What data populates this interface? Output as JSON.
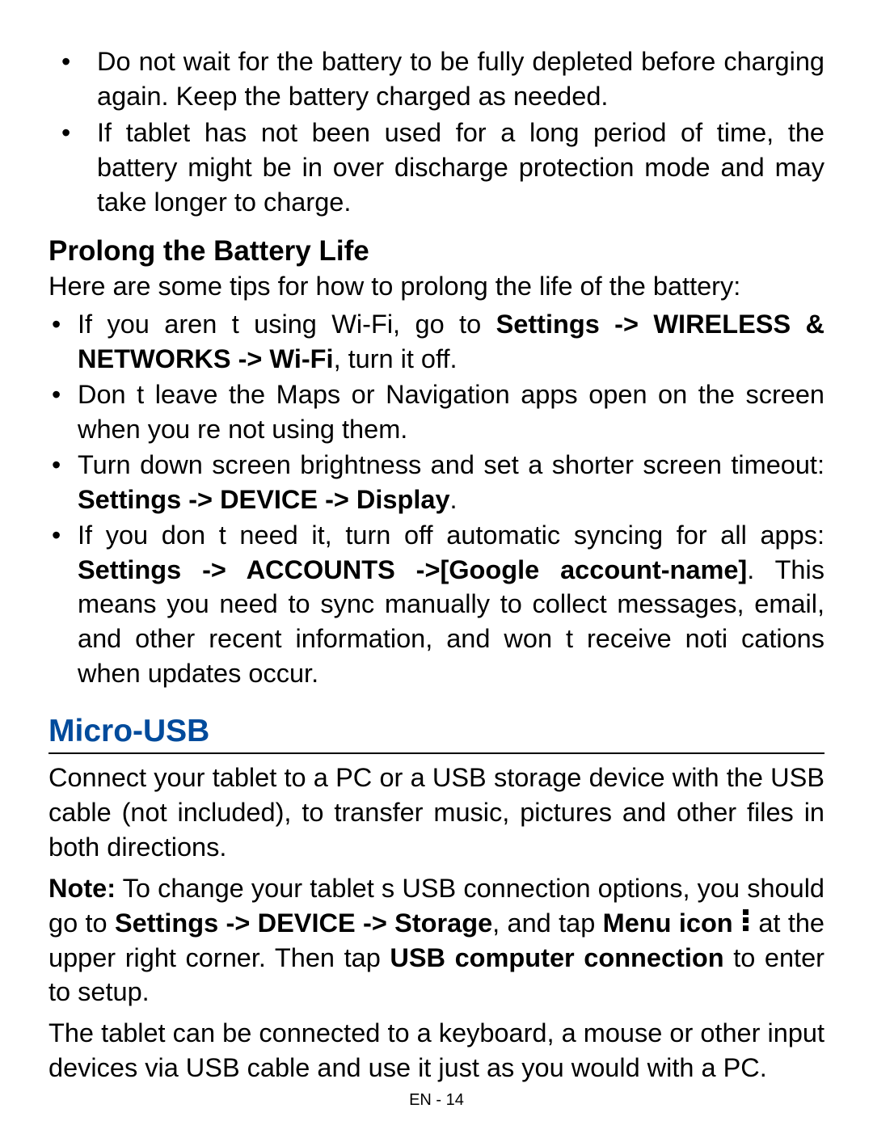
{
  "accent_color": "#004b9c",
  "top_bullets": [
    "Do not wait for the battery to be fully depleted before charging again. Keep the battery charged as needed.",
    "If tablet has not been used for a long period of time, the battery might be in over discharge protection mode and may take longer to charge."
  ],
  "prolong": {
    "heading": "Prolong the Battery Life",
    "intro": "Here are some tips for how to prolong the life of the battery:",
    "tips": [
      {
        "pre": "If you aren t using Wi-Fi, go to ",
        "bold": "Settings -> WIRELESS & NETWORKS -> Wi-Fi",
        "post": ", turn it off."
      },
      {
        "pre": "Don t leave the Maps or Navigation apps open on the screen when you re not using them.",
        "bold": "",
        "post": ""
      },
      {
        "pre": "Turn down screen brightness and set a shorter screen timeout: ",
        "bold": "Settings -> DEVICE -> Display",
        "post": "."
      },
      {
        "pre": "If you don t need it, turn off automatic syncing for all apps: ",
        "bold": "Settings -> ACCOUNTS ->[Google account-name]",
        "post": ". This means you need to sync manually to collect messages, email, and other recent information, and won t receive noti cations when updates occur."
      }
    ]
  },
  "micro_usb": {
    "heading": "Micro-USB",
    "p1": "Connect your tablet to a PC or a USB storage device with the USB cable (not included), to transfer music, pictures and other files in both directions.",
    "note_label": "Note:",
    "note_pre": " To change your tablet s USB connection options, you should go to ",
    "note_b1": "Settings -> DEVICE -> Storage",
    "note_mid1": ", and tap ",
    "note_b2": "Menu icon",
    "note_mid2": " at the upper right corner. Then tap ",
    "note_b3": "USB computer connection",
    "note_post": " to enter to setup.",
    "p3": "The tablet can be connected to a keyboard, a mouse or other input devices via USB cable and use it just as you would with a PC."
  },
  "footer": "EN - 14"
}
